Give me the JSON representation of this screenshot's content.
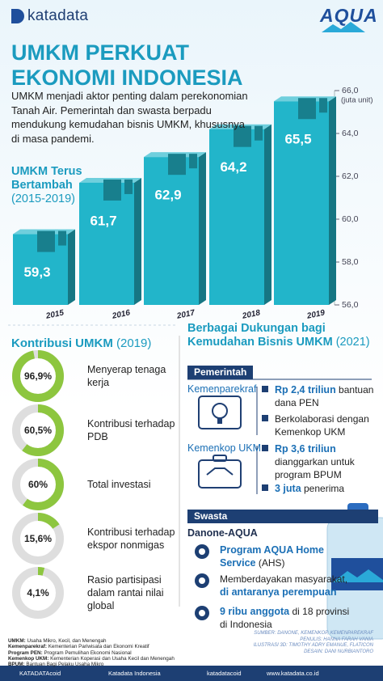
{
  "header": {
    "brand": "katadata",
    "partner": "AQUA",
    "title": [
      "UMKM PERKUAT",
      "EKONOMI INDONESIA"
    ],
    "intro": "UMKM menjadi aktor penting dalam perekonomian Tanah Air. Pemerintah dan swasta berpadu mendukung kemudahan bisnis UMKM, khususnya di masa pandemi."
  },
  "chart_data": [
    {
      "type": "bar",
      "title": "UMKM Terus Bertambah",
      "subtitle": "(2015-2019)",
      "y_label": "(juta unit)",
      "categories": [
        "2015",
        "2016",
        "2017",
        "2018",
        "2019"
      ],
      "values": [
        59.3,
        61.7,
        62.9,
        64.2,
        65.5
      ],
      "value_labels": [
        "59,3",
        "61,7",
        "62,9",
        "64,2",
        "65,5"
      ],
      "ylim": [
        56,
        66
      ],
      "yticks": [
        {
          "value": 56,
          "label": "56,0"
        },
        {
          "value": 58,
          "label": "58,0"
        },
        {
          "value": 60,
          "label": "60,0"
        },
        {
          "value": 62,
          "label": "62,0"
        },
        {
          "value": 64,
          "label": "64,0"
        },
        {
          "value": 66,
          "label": "66,0"
        }
      ],
      "color": "#22b5ca"
    },
    {
      "type": "donut",
      "title": "Kontribusi UMKM",
      "subtitle": "(2019)",
      "categories": [
        "Menyerap tenaga kerja",
        "Kontribusi terhadap PDB",
        "Total investasi",
        "Kontribusi terhadap ekspor nonmigas",
        "Rasio partisipasi dalam rantai nilai global"
      ],
      "values": [
        96.9,
        60.5,
        60,
        15.6,
        4.1
      ],
      "value_labels": [
        "96,9%",
        "60,5%",
        "60%",
        "15,6%",
        "4,1%"
      ],
      "ylim": [
        0,
        100
      ],
      "color": "#8dc63f",
      "track_color": "#dedede"
    }
  ],
  "support": {
    "title": "Berbagai Dukungan bagi Kemudahan Bisnis UMKM",
    "period": "(2021)",
    "groups": [
      {
        "label": "Pemerintah",
        "entries": [
          {
            "name": "Kemenparekraf",
            "items": [
              [
                {
                  "b": "Rp 2,4 triliun"
                },
                {
                  "t": "bantuan dana PEN"
                }
              ],
              [
                {
                  "t": "Berkolaborasi dengan Kemenkop UKM"
                }
              ]
            ]
          },
          {
            "name": "Kemenkop UKM",
            "items": [
              [
                {
                  "b": "Rp 3,6 triliun"
                },
                {
                  "t": "dianggarkan untuk program BPUM"
                }
              ],
              [
                {
                  "b": "3 juta"
                },
                {
                  "t": "penerima"
                }
              ]
            ]
          }
        ]
      },
      {
        "label": "Swasta",
        "entries": [
          {
            "name": "Danone-AQUA",
            "items": [
              [
                {
                  "b": "Program AQUA Home Service"
                },
                {
                  "t": "(AHS)"
                }
              ],
              [
                {
                  "t": "Memberdayakan masyarakat,"
                },
                {
                  "b": "di antaranya perempuan"
                }
              ],
              [
                {
                  "b": "9 ribu anggota"
                },
                {
                  "t": "di 18 provinsi di Indonesia"
                }
              ]
            ]
          }
        ]
      }
    ]
  },
  "notes": [
    {
      "term": "UMKM:",
      "text": "Usaha Mikro, Kecil, dan Menengah"
    },
    {
      "term": "Kemenparekraf:",
      "text": "Kementerian Pariwisata dan Ekonomi Kreatif"
    },
    {
      "term": "Program PEN:",
      "text": "Program Pemulihan Ekonomi Nasional"
    },
    {
      "term": "Kemenkop UKM:",
      "text": "Kementerian Koperasi dan Usaha Kecil dan Menengah"
    },
    {
      "term": "BPUM:",
      "text": "Bantuan Bagi Pelaku Usaha Mikro"
    }
  ],
  "credits": [
    "SUMBER: DANONE, KEMENKOP, KEMENPAREKRAF",
    "PENULIS: HANNA FARAH VANIA",
    "ILUSTRASI 3D: TIMOTHY ADRY EMANUE, FLATICON",
    "DESAIN: DANI NURBIANTORO"
  ],
  "footer": [
    "KATADATAcoid",
    "Katadata Indonesia",
    "katadatacoid",
    "www.katadata.co.id"
  ]
}
